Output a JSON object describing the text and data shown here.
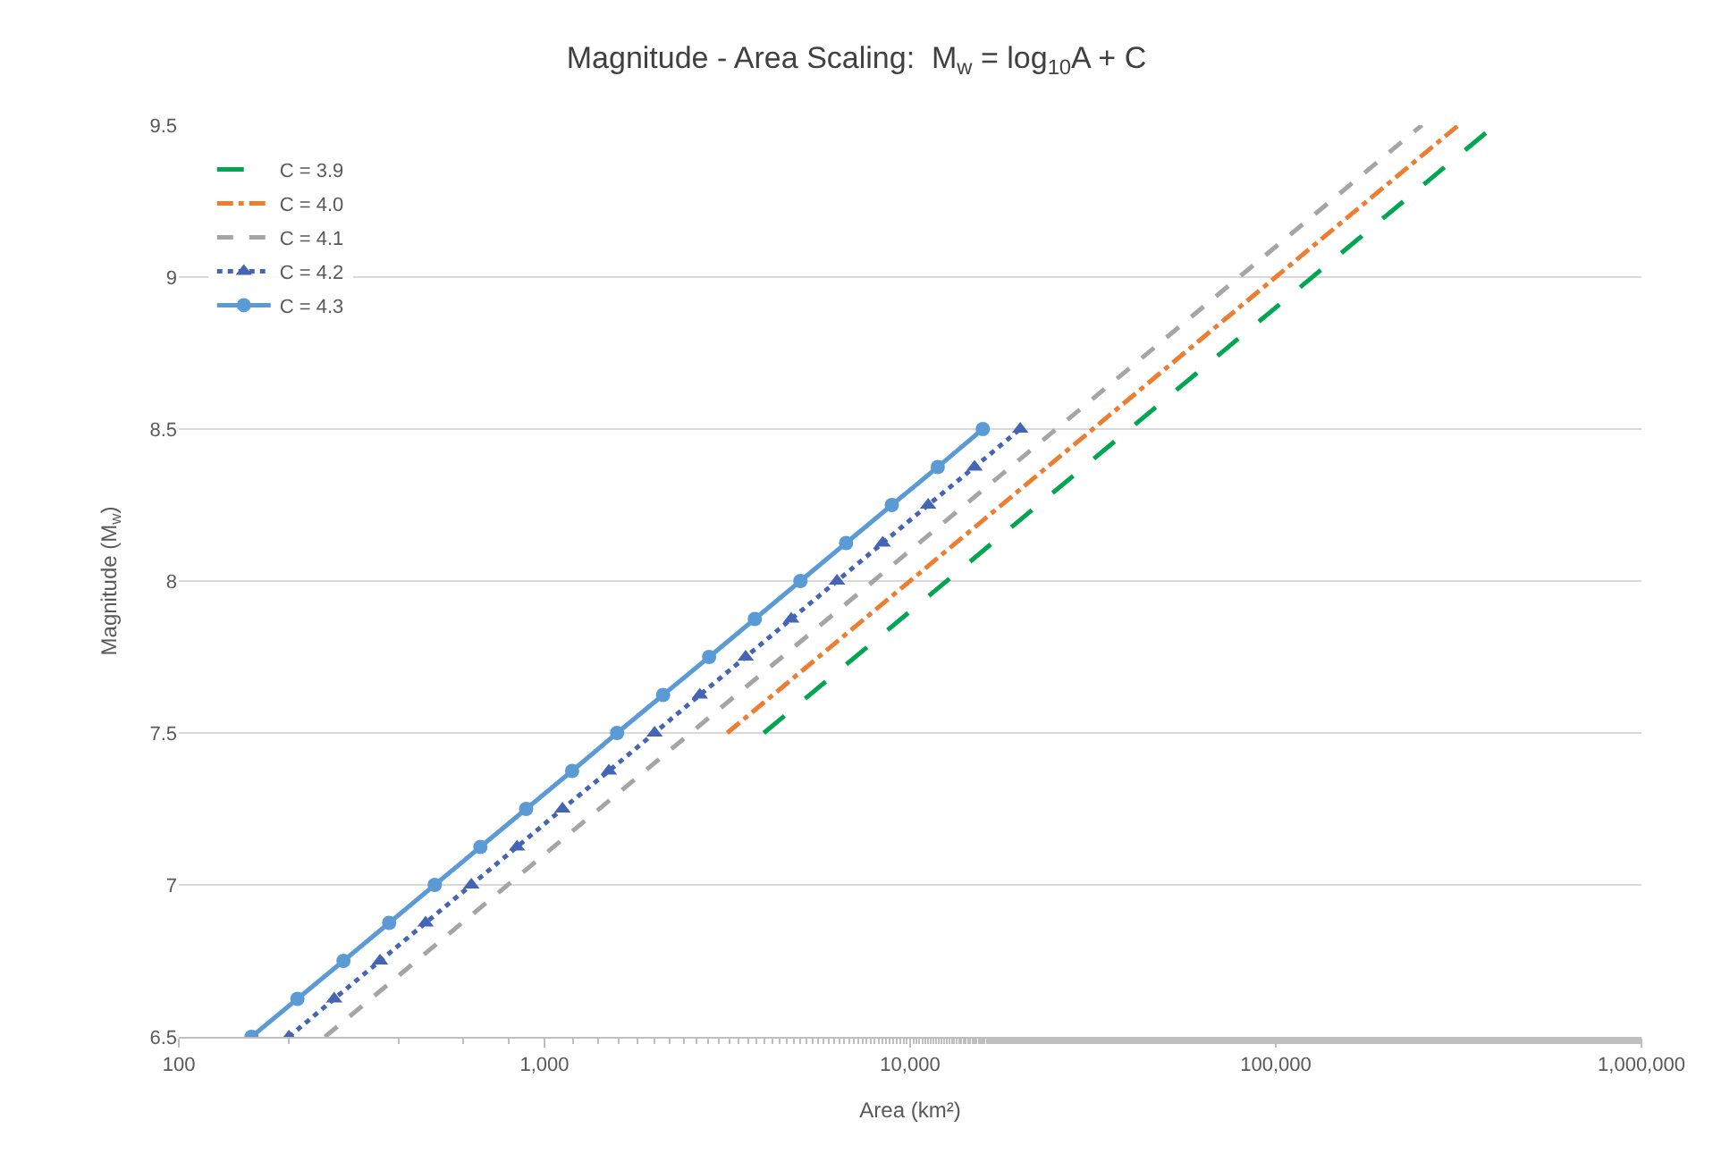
{
  "chart_data": {
    "type": "line",
    "title": "Magnitude - Area Scaling:  M$_{w}$ = log$_{10}$A + C",
    "xlabel": "Area (km²)",
    "ylabel": "Magnitude (M$_{w}$)",
    "log": "x",
    "xlim": [
      100,
      1000000
    ],
    "xticks": [
      100,
      {
        "value": 1000,
        "label": "1,000"
      },
      {
        "value": 10000,
        "label": "10,000"
      },
      {
        "value": 100000,
        "label": "100,000"
      },
      {
        "value": 1000000,
        "label": "1,000,000"
      }
    ],
    "ylim": [
      6.5,
      9.5
    ],
    "yticks": [
      6.5,
      7,
      7.5,
      8,
      8.5,
      9,
      9.5
    ],
    "grid": "y",
    "legend": "top left",
    "series": [
      {
        "name": "C = 3.9",
        "color": "#00a650",
        "line_style": "dashed",
        "marker": "none",
        "x": [
          3980,
          398000
        ],
        "values": [
          7.5,
          9.5
        ]
      },
      {
        "name": "C = 4.0",
        "color": "#ed7d31",
        "line_style": "dashed",
        "marker": "none",
        "x": [
          3160,
          316000
        ],
        "values": [
          7.5,
          9.5
        ]
      },
      {
        "name": "C = 4.1",
        "color": "#a5a5a5",
        "line_style": "dashed",
        "marker": "none",
        "x": [
          251,
          251000
        ],
        "values": [
          6.5,
          9.5
        ]
      },
      {
        "name": "C = 4.2",
        "color": "#4464b4",
        "line_style": "dotted",
        "marker": "triangle",
        "x": [
          200,
          266,
          355,
          473,
          631,
          841,
          1120,
          1500,
          2000,
          2660,
          3550,
          4730,
          6310,
          8410,
          11200,
          15000,
          20000
        ],
        "values": [
          6.5,
          6.625,
          6.75,
          6.875,
          7,
          7.125,
          7.25,
          7.375,
          7.5,
          7.625,
          7.75,
          7.875,
          8,
          8.125,
          8.25,
          8.375,
          8.5
        ]
      },
      {
        "name": "C = 4.3",
        "color": "#5b9bd5",
        "line_style": "solid",
        "marker": "circle",
        "x": [
          158,
          211,
          282,
          376,
          501,
          668,
          891,
          1190,
          1580,
          2110,
          2820,
          3760,
          5010,
          6680,
          8910,
          11900,
          15800
        ],
        "values": [
          6.5,
          6.625,
          6.75,
          6.875,
          7,
          7.125,
          7.25,
          7.375,
          7.5,
          7.625,
          7.75,
          7.875,
          8,
          8.125,
          8.25,
          8.375,
          8.5
        ]
      }
    ]
  }
}
